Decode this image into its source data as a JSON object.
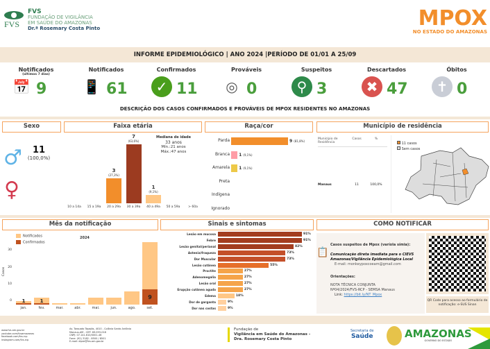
{
  "header": {
    "org_short": "FVS",
    "org_line1": "FUNDAÇÃO DE VIGILÂNCIA",
    "org_line2": "EM SAÚDE DO AMAZONAS",
    "org_line3": "Dr.ª Rosemary Costa Pinto",
    "title": "MPOX",
    "subtitle": "NO ESTADO DO AMAZONAS"
  },
  "banner": "INFORME EPIDEMIOLÓGICO | ANO 2024 |PERÍODO DE 01/01 A 25/09",
  "kpis": [
    {
      "label": "Notificados",
      "sub": "(últimos 7 dias)",
      "value": "9",
      "icon": "calendar-icon"
    },
    {
      "label": "Notificados",
      "value": "61",
      "icon": "phone-form-icon"
    },
    {
      "label": "Confirmados",
      "value": "11",
      "icon": "check-icon"
    },
    {
      "label": "Prováveis",
      "value": "0",
      "icon": "target-icon"
    },
    {
      "label": "Suspeitos",
      "value": "3",
      "icon": "magnifier-icon"
    },
    {
      "label": "Descartados",
      "value": "47",
      "icon": "x-icon"
    },
    {
      "label": "Óbitos",
      "value": "0",
      "icon": "tombstone-icon"
    }
  ],
  "section_title": "DESCRIÇÃO DOS CASOS CONFIRMADOS E PROVÁVEIS DE MPOX RESIDENTES NO AMAZONAS",
  "sexo": {
    "title": "Sexo",
    "male_value": "11",
    "male_pct": "(100,0%)"
  },
  "faixa": {
    "title": "Faixa etária",
    "median_label": "Mediana de idade",
    "median": "33 anos",
    "min": "Mín.:21 anos",
    "max": "Máx.:47 anos",
    "categories": [
      "10 a 14a",
      "15 a 19a",
      "20 a 29a",
      "30 a 39a",
      "40 a 49a",
      "50 a 59a",
      "> 60a"
    ],
    "values": [
      0,
      0,
      3,
      7,
      1,
      0,
      0
    ],
    "pcts": [
      "",
      "",
      "(27,3%)",
      "(63,6%)",
      "(9,1%)",
      "",
      ""
    ],
    "colors": [
      "#f28e2b",
      "#f28e2b",
      "#f28e2b",
      "#9c3b20",
      "#ffc785",
      "#f28e2b",
      "#f28e2b"
    ]
  },
  "raca": {
    "title": "Raça/cor",
    "categories": [
      "Parda",
      "Branca",
      "Amarela",
      "Preta",
      "Indígena",
      "Ignorado"
    ],
    "values": [
      9,
      1,
      1,
      0,
      0,
      0
    ],
    "pcts": [
      "(81,8%)",
      "(9,1%)",
      "(9,1%)",
      "",
      "",
      ""
    ],
    "colors": [
      "#f28e2b",
      "#ff9da7",
      "#edc948",
      "#ccc",
      "#ccc",
      "#ccc"
    ]
  },
  "municipio": {
    "title": "Município de residência",
    "headers": [
      "Município de Residência",
      "Casos",
      "%"
    ],
    "rows": [
      [
        "Manaus",
        "11",
        "100,0%"
      ]
    ],
    "legend": [
      "11 casos",
      "Sem casos"
    ]
  },
  "mes": {
    "title": "Mês da notificação",
    "year": "2024",
    "ylabel": "Casos",
    "legend": [
      "Notificados",
      "Confirmados"
    ],
    "yticks": [
      0,
      10,
      20,
      30
    ],
    "categories": [
      "jan.",
      "fev.",
      "mar.",
      "abr.",
      "mai.",
      "jun.",
      "ago.",
      "set."
    ],
    "notificados": [
      2,
      4,
      1,
      1,
      4,
      4,
      8,
      37
    ],
    "confirmados": [
      1,
      1,
      0,
      0,
      0,
      0,
      0,
      9
    ]
  },
  "sinais": {
    "title": "Sinais e sintomas",
    "items": [
      [
        "Lesão em mucosa",
        91
      ],
      [
        "Febre",
        91
      ],
      [
        "Lesão genital/perianal",
        82
      ],
      [
        "Astenia/fraqueza",
        73
      ],
      [
        "Dor Muscular",
        73
      ],
      [
        "Lesão cutânea",
        55
      ],
      [
        "Proctite",
        27
      ],
      [
        "Adenomegalia",
        27
      ],
      [
        "Lesão oral",
        27
      ],
      [
        "Erupção cutânea aguda",
        27
      ],
      [
        "Edema",
        18
      ],
      [
        "Dor de garganta",
        9
      ],
      [
        "Dor nas costas",
        9
      ]
    ]
  },
  "notificar": {
    "title": "COMO NOTIFICAR",
    "casos": "Casos suspeitos de Mpox (varíola símia):",
    "comunic1": "Comunicação direta imediata para o CIEVS",
    "comunic2": "Amazonas/Vigilância Epidemiológica Local",
    "email": "E-mail: monkeypoxcoeam@gmail.com",
    "orient": "Orientações:",
    "nota1": "NOTA TÉCNICA CONJUNTA",
    "nota2": "Nº04/2024/FVS-RCP - SEMSA Manaus",
    "link_label": "Link:",
    "link": "https://bit.ly/NT_Mpox",
    "qr_caption": "QR Code para acesso ao formulário de notificação: e-SUS Sinan"
  },
  "footer": {
    "web": [
      "www.fvs.am.gov.br",
      "youtube.com/fvsamazonas",
      "facebook.com/fvs.rcp",
      "instagram.com/fvs.rcp"
    ],
    "address": [
      "Av. Torquato Tapajós, 4010 - Colônia Santo Antônio",
      "Manaus-AM - CEP: 69.093-018",
      "CNPJ: 07.141.610/0001-46",
      "Fone: (92) 3182 - 8500 / 8501",
      "E-mail: dipre@fvs.am.gov.br"
    ],
    "fvs1": "Fundação de",
    "fvs2": "Vigilância em Saúde do Amazonas -",
    "fvs3": "Dra. Rosemary Costa Pinto",
    "sec1": "Secretaria de",
    "sec2": "Saúde",
    "am": "AMAZONAS",
    "gov": "GOVERNO DO ESTADO"
  }
}
